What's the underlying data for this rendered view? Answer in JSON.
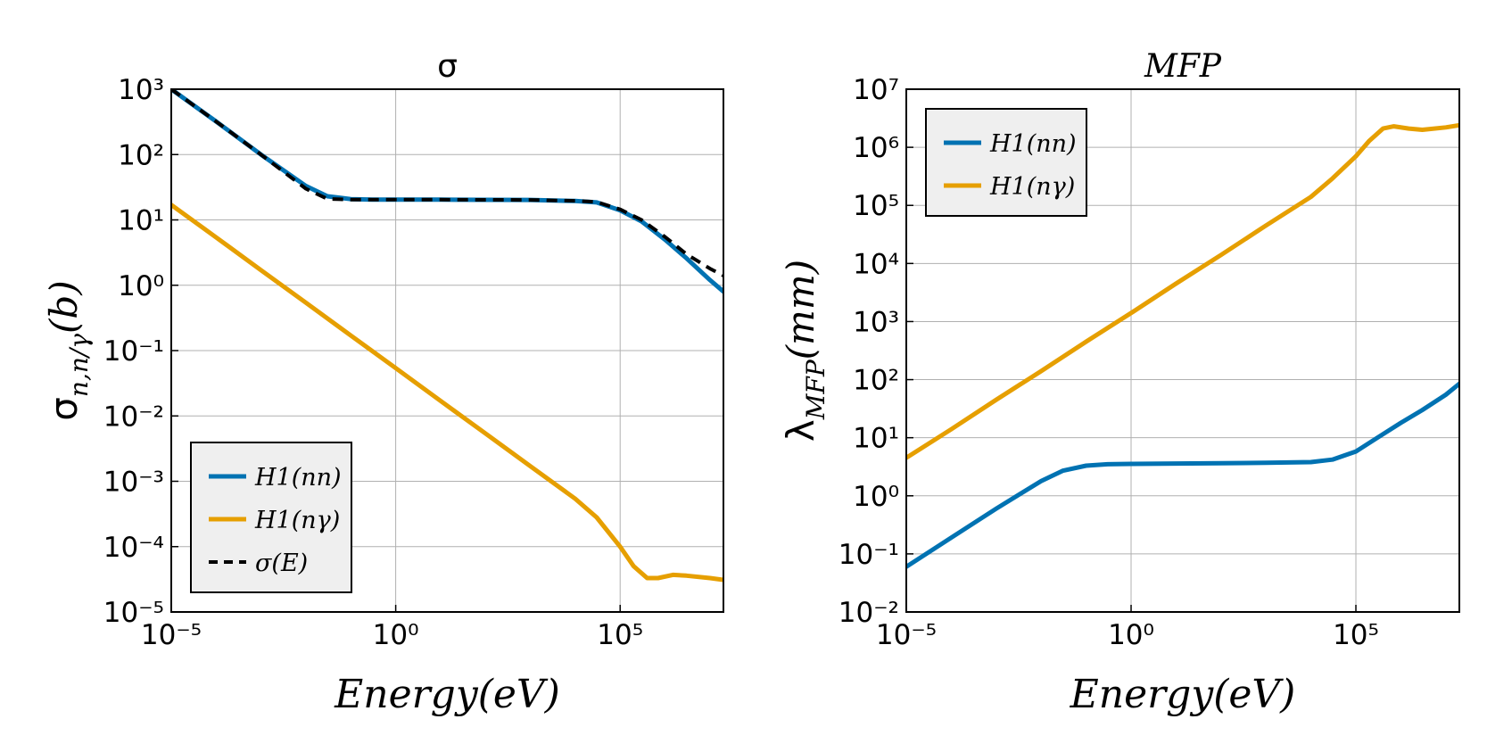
{
  "figure": {
    "panels": [
      {
        "title": "σ",
        "title_italic": false,
        "ylabel_base": "σ",
        "ylabel_sub": "n,n/γ",
        "ylabel_rest": "(b)",
        "xlabel": "Energy(eV)",
        "legend_items": [
          {
            "label": "H1(nn)"
          },
          {
            "label": "H1(nγ)"
          },
          {
            "label": "σ(E)"
          }
        ]
      },
      {
        "title": "MFP",
        "title_italic": true,
        "ylabel_base": "λ",
        "ylabel_sub": "MFP",
        "ylabel_rest": "(mm)",
        "xlabel": "Energy(eV)",
        "legend_items": [
          {
            "label": "H1(nn)"
          },
          {
            "label": "H1(nγ)"
          }
        ]
      }
    ]
  },
  "chart_data": [
    {
      "type": "line",
      "title": "σ",
      "xlabel": "Energy(eV)",
      "ylabel": "σ n,n/γ (b)",
      "x_scale": "log",
      "y_scale": "log",
      "xlim": [
        1e-05,
        20000000
      ],
      "ylim": [
        1e-05,
        1000
      ],
      "x_ticks": [
        {
          "exp": -5
        },
        {
          "exp": 0
        },
        {
          "exp": 5
        }
      ],
      "y_ticks": [
        {
          "exp": -5
        },
        {
          "exp": -4
        },
        {
          "exp": -3
        },
        {
          "exp": -2
        },
        {
          "exp": -1
        },
        {
          "exp": 0
        },
        {
          "exp": 1
        },
        {
          "exp": 2
        },
        {
          "exp": 3
        }
      ],
      "grid": true,
      "legend_position": "lower-left",
      "series": [
        {
          "name": "H1(nn)",
          "color": "#0072b2",
          "dash": "solid",
          "x": [
            1e-05,
            0.0001,
            0.001,
            0.01,
            0.03,
            0.1,
            0.3,
            1,
            10,
            100,
            1000,
            10000,
            30000,
            100000,
            300000,
            1000000,
            3000000,
            10000000,
            20000000
          ],
          "y": [
            1000,
            320,
            100,
            33,
            23,
            20.8,
            20.5,
            20.4,
            20.4,
            20.3,
            20.2,
            19.5,
            18.5,
            14,
            9.5,
            5,
            2.6,
            1.2,
            0.8
          ]
        },
        {
          "name": "H1(nγ)",
          "color": "#e69f00",
          "dash": "solid",
          "x": [
            1e-05,
            0.0001,
            0.001,
            0.01,
            0.1,
            1,
            10,
            100,
            1000,
            10000,
            30000,
            100000,
            200000,
            400000,
            700000,
            1500000,
            3000000,
            10000000,
            20000000
          ],
          "y": [
            17,
            5.4,
            1.7,
            0.54,
            0.17,
            0.054,
            0.017,
            0.0054,
            0.0017,
            0.00054,
            0.00028,
            0.0001,
            5e-05,
            3.3e-05,
            3.3e-05,
            3.7e-05,
            3.6e-05,
            3.3e-05,
            3.1e-05
          ]
        },
        {
          "name": "σ(E)",
          "color": "#000000",
          "dash": "dashed",
          "x": [
            1e-05,
            0.0001,
            0.001,
            0.01,
            0.03,
            0.1,
            0.3,
            1,
            10,
            100,
            1000,
            10000,
            30000,
            100000,
            300000,
            1000000,
            3000000,
            10000000,
            20000000
          ],
          "y": [
            1000,
            320,
            100,
            30,
            21,
            20.4,
            20.4,
            20.4,
            20.4,
            20.3,
            20.2,
            19.6,
            18.8,
            14.5,
            10,
            5.5,
            3,
            1.8,
            1.4
          ]
        }
      ]
    },
    {
      "type": "line",
      "title": "MFP",
      "xlabel": "Energy(eV)",
      "ylabel": "λ MFP (mm)",
      "x_scale": "log",
      "y_scale": "log",
      "xlim": [
        1e-05,
        20000000
      ],
      "ylim": [
        0.01,
        10000000
      ],
      "x_ticks": [
        {
          "exp": -5
        },
        {
          "exp": 0
        },
        {
          "exp": 5
        }
      ],
      "y_ticks": [
        {
          "exp": -2
        },
        {
          "exp": -1
        },
        {
          "exp": 0
        },
        {
          "exp": 1
        },
        {
          "exp": 2
        },
        {
          "exp": 3
        },
        {
          "exp": 4
        },
        {
          "exp": 5
        },
        {
          "exp": 6
        },
        {
          "exp": 7
        }
      ],
      "grid": true,
      "legend_position": "upper-left",
      "series": [
        {
          "name": "H1(nn)",
          "color": "#0072b2",
          "dash": "solid",
          "x": [
            1e-05,
            0.0001,
            0.001,
            0.01,
            0.03,
            0.1,
            0.3,
            1,
            10,
            100,
            1000,
            10000,
            30000,
            100000,
            300000,
            1000000,
            3000000,
            10000000,
            20000000
          ],
          "y": [
            0.06,
            0.19,
            0.6,
            1.8,
            2.7,
            3.3,
            3.5,
            3.55,
            3.6,
            3.65,
            3.7,
            3.8,
            4.2,
            5.8,
            10,
            18,
            30,
            55,
            85
          ]
        },
        {
          "name": "H1(nγ)",
          "color": "#e69f00",
          "dash": "solid",
          "x": [
            1e-05,
            0.0001,
            0.001,
            0.01,
            0.1,
            1,
            10,
            100,
            1000,
            10000,
            30000,
            100000,
            200000,
            400000,
            700000,
            1500000,
            3000000,
            10000000,
            20000000
          ],
          "y": [
            4.5,
            14,
            45,
            140,
            450,
            1400,
            4500,
            14000,
            45000,
            140000,
            290000,
            700000,
            1300000,
            2100000,
            2300000,
            2100000,
            2000000,
            2200000,
            2400000
          ]
        }
      ]
    }
  ]
}
